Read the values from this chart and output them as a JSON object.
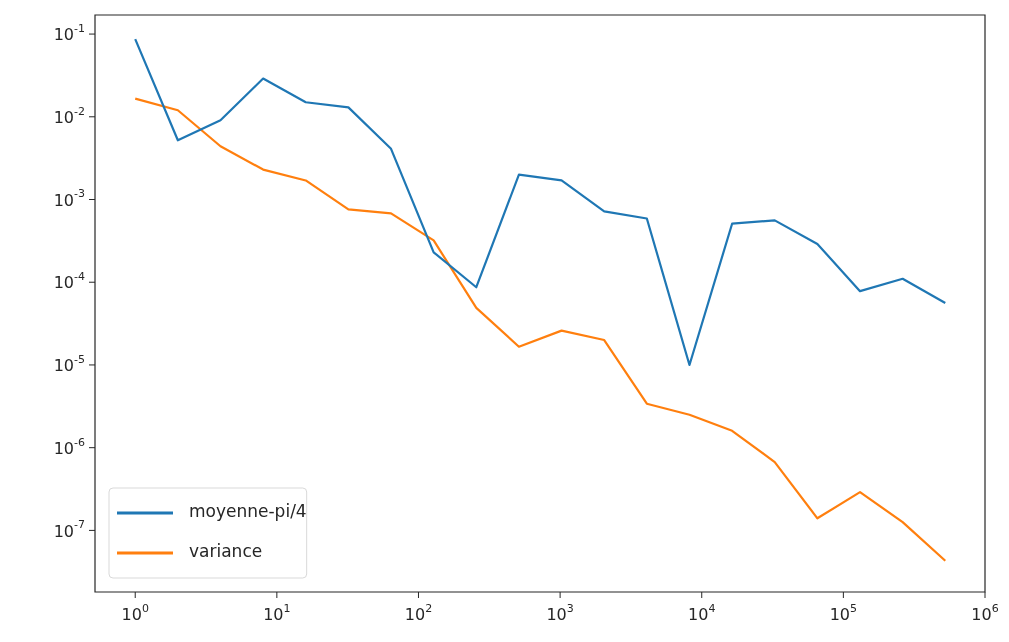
{
  "chart_data": {
    "type": "line",
    "log": "xy",
    "legend": "bottom left",
    "grid": false,
    "x": [
      1,
      2,
      4,
      8,
      16,
      32,
      64,
      128,
      256,
      512,
      1024,
      2048,
      4096,
      8192,
      16384,
      32768,
      65536,
      131072,
      262144,
      524288
    ],
    "series": [
      {
        "name": "moyenne-pi/4",
        "color": "#1f77b4",
        "values": [
          0.087,
          0.0052,
          0.0091,
          0.029,
          0.015,
          0.013,
          0.0041,
          0.00023,
          8.7e-05,
          0.002,
          0.0017,
          0.00072,
          0.00059,
          1e-05,
          0.00051,
          0.00056,
          0.00029,
          7.8e-05,
          0.00011,
          5.6e-05
        ]
      },
      {
        "name": "variance",
        "color": "#ff7f0e",
        "values": [
          0.0166,
          0.012,
          0.0044,
          0.0023,
          0.0017,
          0.00076,
          0.00068,
          0.00032,
          4.9e-05,
          1.66e-05,
          2.6e-05,
          2e-05,
          3.4e-06,
          2.5e-06,
          1.6e-06,
          6.7e-07,
          1.4e-07,
          2.9e-07,
          1.26e-07,
          4.3e-08
        ]
      }
    ],
    "xlim": [
      0.52,
      1000000
    ],
    "ylim": [
      1.8e-08,
      0.17
    ],
    "xticks": [
      {
        "value": 1,
        "label": "10$^{0}$"
      },
      {
        "value": 10,
        "label": "10$^{1}$"
      },
      {
        "value": 100,
        "label": "10$^{2}$"
      },
      {
        "value": 1000,
        "label": "10$^{3}$"
      },
      {
        "value": 10000,
        "label": "10$^{4}$"
      },
      {
        "value": 100000,
        "label": "10$^{5}$"
      },
      {
        "value": 1000000,
        "label": "10$^{6}$"
      }
    ],
    "yticks": [
      {
        "value": 1e-07,
        "label": "10$^{-7}$"
      },
      {
        "value": 1e-06,
        "label": "10$^{-6}$"
      },
      {
        "value": 1e-05,
        "label": "10$^{-5}$"
      },
      {
        "value": 0.0001,
        "label": "10$^{-4}$"
      },
      {
        "value": 0.001,
        "label": "10$^{-3}$"
      },
      {
        "value": 0.01,
        "label": "10$^{-2}$"
      },
      {
        "value": 0.1,
        "label": "10$^{-1}$"
      }
    ]
  }
}
